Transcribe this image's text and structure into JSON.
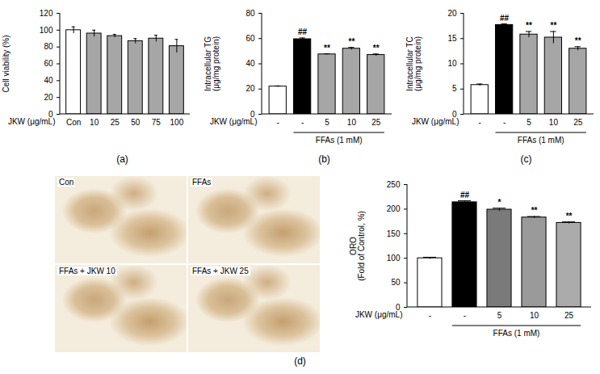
{
  "chart_data": [
    {
      "type": "bar",
      "panel": "(a)",
      "y_label": "Cell viability (%)",
      "x_label": "JKW (μg/mL)",
      "categories": [
        "Con",
        "10",
        "25",
        "50",
        "75",
        "100"
      ],
      "values": [
        100,
        96,
        93,
        87,
        90,
        81
      ],
      "errors": [
        4,
        4,
        2,
        3,
        4,
        8
      ],
      "colors": [
        "#ffffff",
        "#a6a6a6",
        "#a6a6a6",
        "#a6a6a6",
        "#a6a6a6",
        "#a6a6a6"
      ],
      "ylim": [
        0,
        120
      ],
      "yticks": [
        0,
        20,
        40,
        60,
        80,
        100,
        120
      ]
    },
    {
      "type": "bar",
      "panel": "(b)",
      "y_label": "Intracellular TG\n(μg/mg protein)",
      "x_label": "JKW (μg/mL)",
      "group_label": "FFAs (1 mM)",
      "categories": [
        "-",
        "-",
        "5",
        "10",
        "25"
      ],
      "values": [
        22,
        59.5,
        47.5,
        52,
        47
      ],
      "errors": [
        0.5,
        1,
        0.5,
        1,
        0.8
      ],
      "significance": [
        null,
        "##",
        "**",
        "**",
        "**"
      ],
      "colors": [
        "#ffffff",
        "#000000",
        "#a6a6a6",
        "#a6a6a6",
        "#a6a6a6"
      ],
      "ylim": [
        0,
        80
      ],
      "yticks": [
        0,
        20,
        40,
        60,
        80
      ]
    },
    {
      "type": "bar",
      "panel": "(c)",
      "y_label": "Intracellular TC\n(μg/mg protein)",
      "x_label": "JKW (μg/mL)",
      "group_label": "FFAs (1 mM)",
      "categories": [
        "-",
        "-",
        "5",
        "10",
        "25"
      ],
      "values": [
        5.8,
        17.7,
        15.8,
        15.2,
        13
      ],
      "errors": [
        0.2,
        0.2,
        0.6,
        1.2,
        0.4
      ],
      "significance": [
        null,
        "##",
        "**",
        "**",
        "**"
      ],
      "colors": [
        "#ffffff",
        "#000000",
        "#a6a6a6",
        "#a6a6a6",
        "#a6a6a6"
      ],
      "ylim": [
        0,
        20
      ],
      "yticks": [
        0,
        5,
        10,
        15,
        20
      ]
    },
    {
      "type": "bar",
      "panel": "(d)",
      "y_label": "ORO\n(Fold of Control, %)",
      "x_label": "JKW (μg/mL)",
      "group_label": "FFAs (1 mM)",
      "categories": [
        "-",
        "-",
        "5",
        "10",
        "25"
      ],
      "values": [
        100,
        214,
        199,
        183,
        172
      ],
      "errors": [
        2,
        3,
        3,
        2,
        2
      ],
      "significance": [
        null,
        "##",
        "*",
        "**",
        "**"
      ],
      "colors": [
        "#ffffff",
        "#000000",
        "#7a7a7a",
        "#9a9a9a",
        "#ababab"
      ],
      "ylim": [
        0,
        250
      ],
      "yticks": [
        0,
        50,
        100,
        150,
        200,
        250
      ]
    }
  ],
  "micrograph": {
    "labels": [
      "Con",
      "FFAs",
      "FFAs + JKW 10",
      "FFAs + JKW 25"
    ]
  }
}
